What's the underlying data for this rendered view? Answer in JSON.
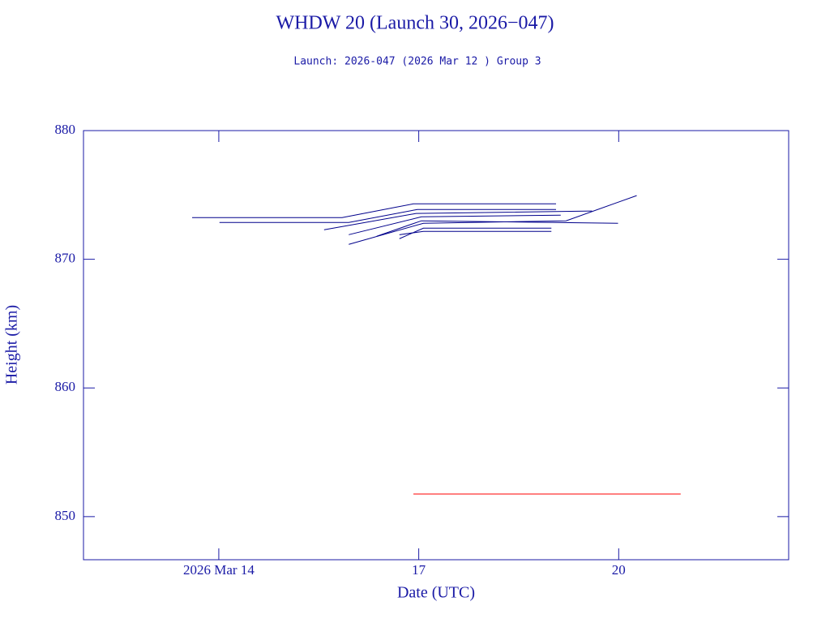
{
  "chart_data": {
    "type": "line",
    "title": "WHDW 20 (Launch 30, 2026−047)",
    "subtitle": "Launch: 2026-047  (2026 Mar 12 )  Group 3",
    "x_label": "Date (UTC)",
    "y_label": "Height (km)",
    "xlim": [
      11.97,
      22.55
    ],
    "xticks": [
      {
        "value": 14,
        "label": "2026 Mar 14"
      },
      17,
      20
    ],
    "ylim": [
      846.65,
      880
    ],
    "yticks": [
      850,
      860,
      870,
      880
    ],
    "grid": false,
    "series": [
      {
        "color": "#00008b",
        "x": [
          13.6,
          15.85,
          16.92,
          19.06
        ],
        "values": [
          873.24,
          873.24,
          874.31,
          874.31
        ]
      },
      {
        "color": "#00008b",
        "x": [
          14.01,
          15.95,
          16.98,
          19.06
        ],
        "values": [
          872.86,
          872.86,
          873.87,
          873.87
        ]
      },
      {
        "color": "#00008b",
        "x": [
          15.58,
          16.96,
          19.6
        ],
        "values": [
          872.29,
          873.56,
          873.75
        ]
      },
      {
        "color": "#00008b",
        "x": [
          15.95,
          17.04,
          19.13
        ],
        "values": [
          871.91,
          873.3,
          873.43
        ]
      },
      {
        "color": "#00008b",
        "x": [
          15.95,
          17.07,
          19.21,
          20.27
        ],
        "values": [
          871.16,
          872.8,
          872.99,
          874.95
        ]
      },
      {
        "color": "#00008b",
        "x": [
          16.37,
          17.04,
          19.99
        ],
        "values": [
          871.79,
          872.99,
          872.8
        ]
      },
      {
        "color": "#00008b",
        "x": [
          16.71,
          17.07,
          18.99
        ],
        "values": [
          871.6,
          872.42,
          872.42
        ]
      },
      {
        "color": "#00008b",
        "x": [
          16.71,
          17.07,
          18.99
        ],
        "values": [
          871.91,
          872.17,
          872.17
        ]
      },
      {
        "color": "#ff0000",
        "x": [
          16.92,
          20.93
        ],
        "values": [
          851.76,
          851.76
        ]
      }
    ]
  }
}
